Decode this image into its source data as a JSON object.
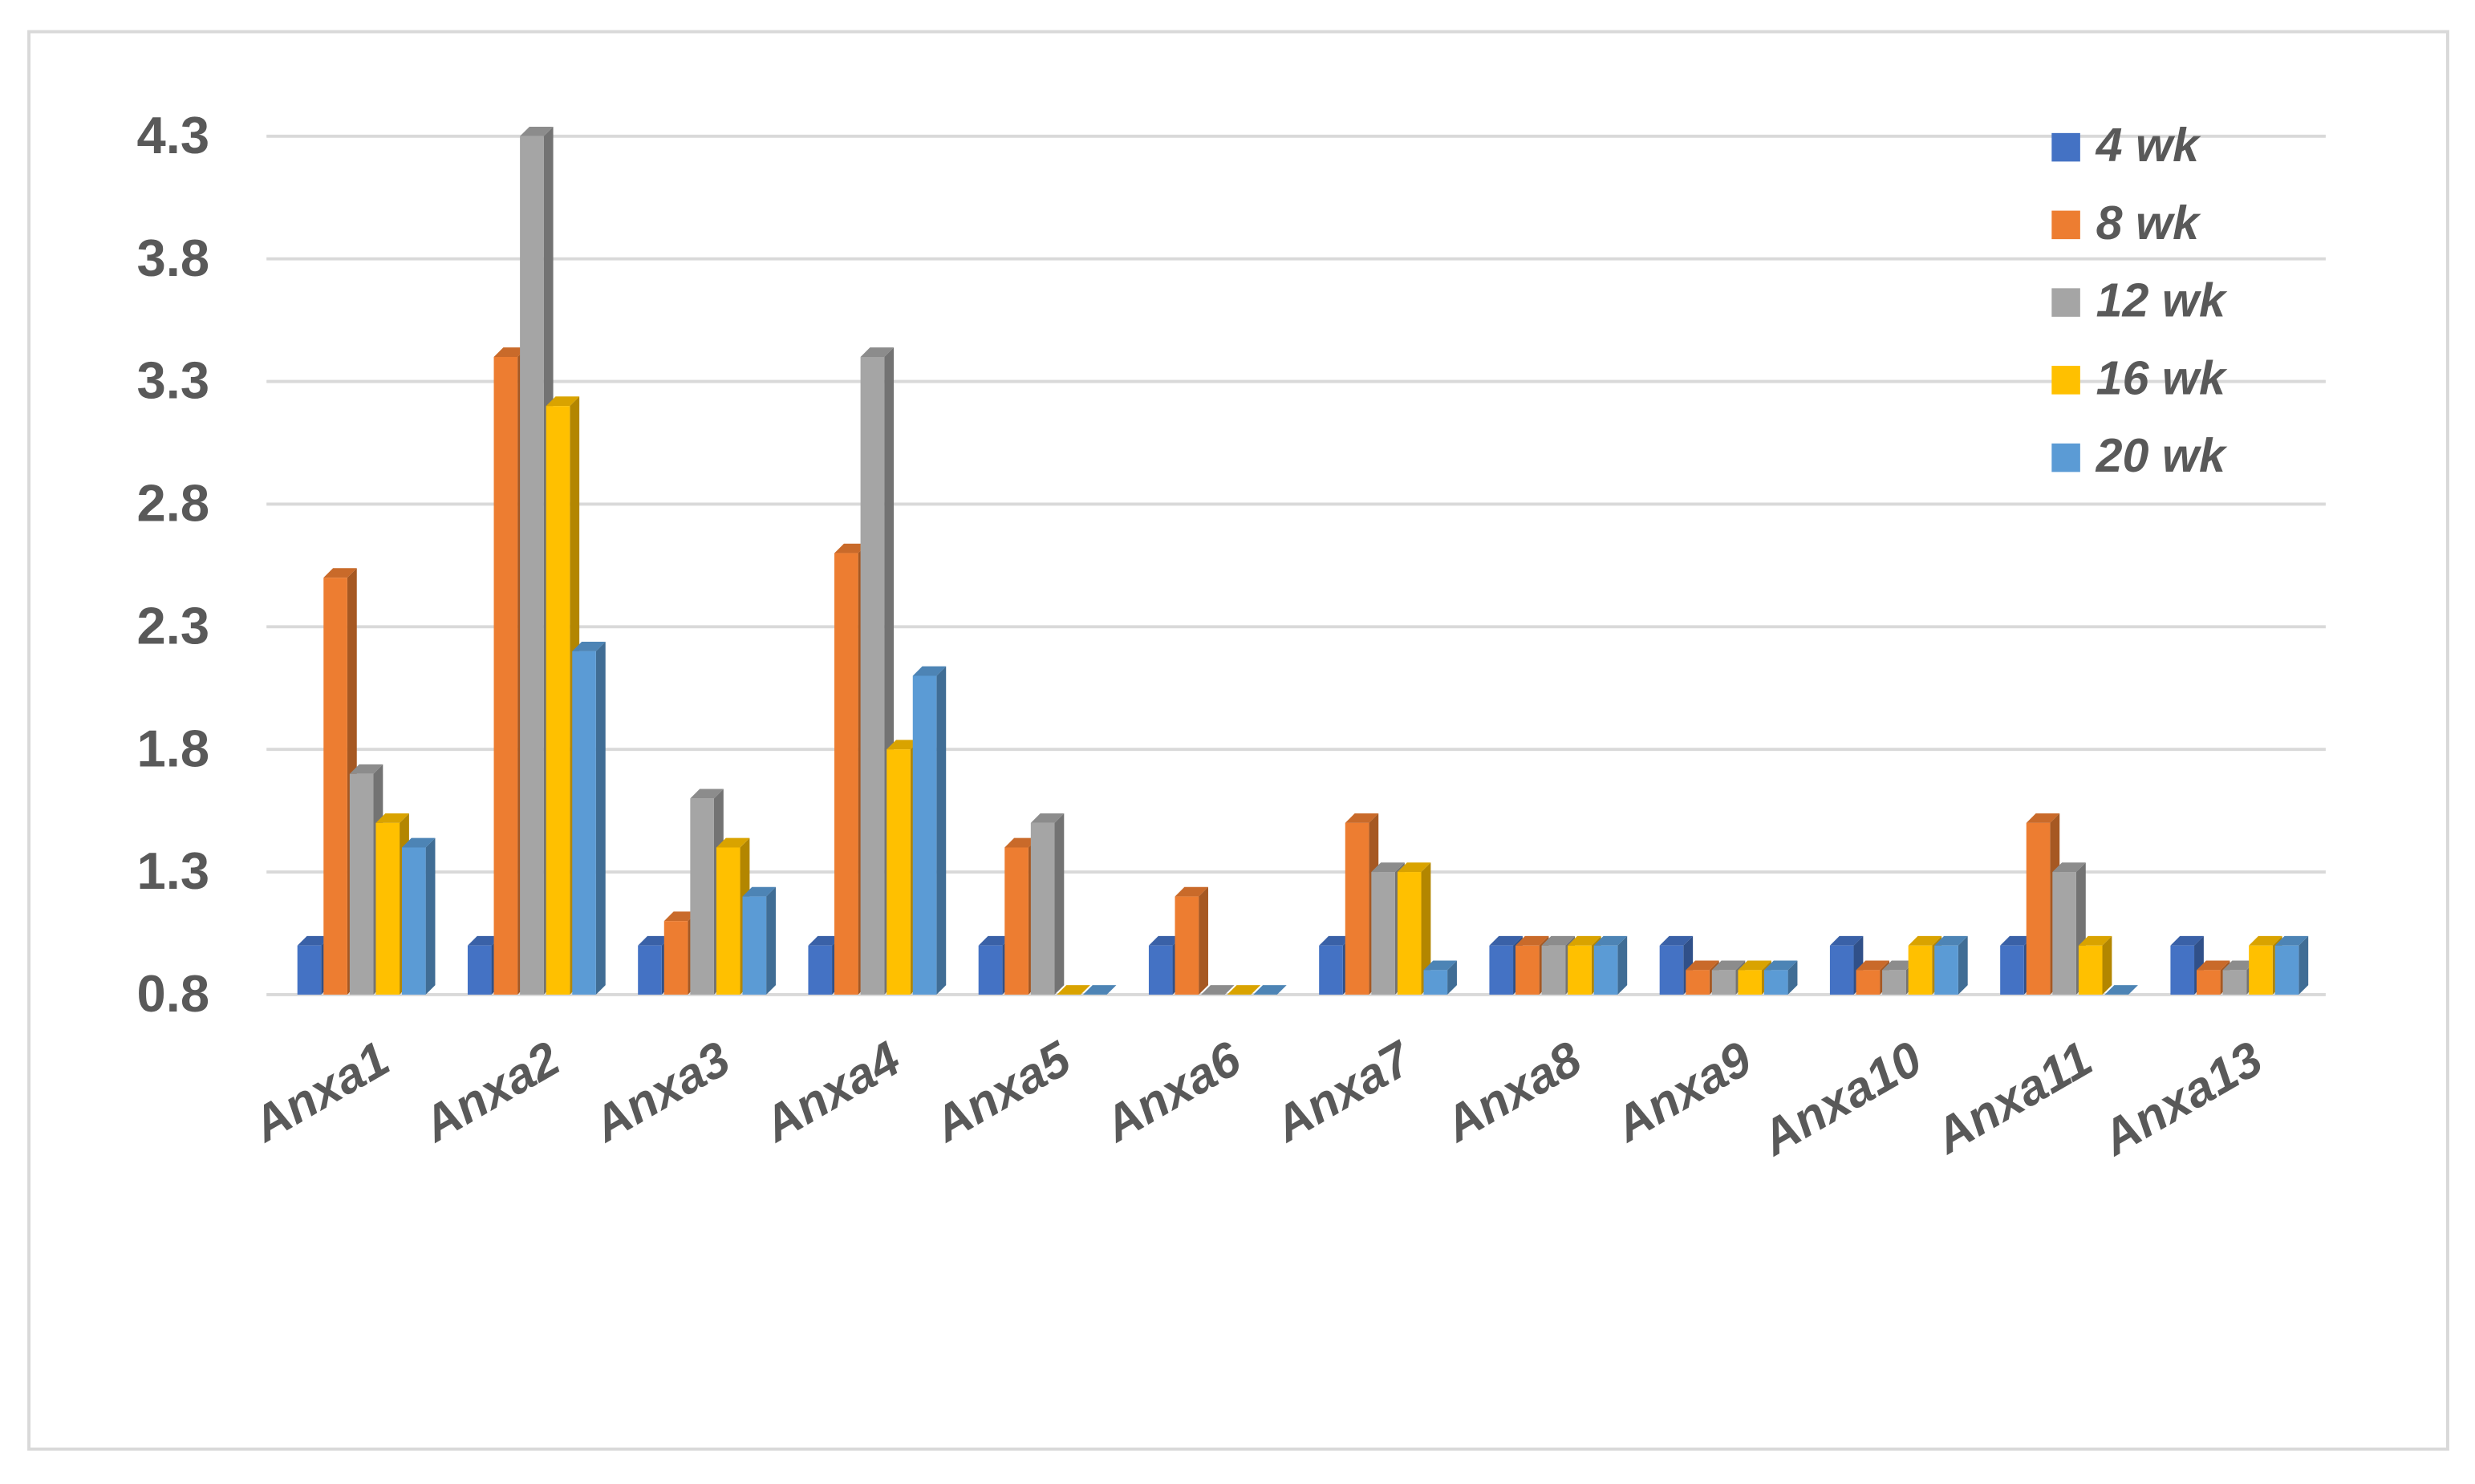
{
  "chart_data": {
    "type": "bar",
    "categories": [
      "Anxa1",
      "Anxa2",
      "Anxa3",
      "Anxa4",
      "Anxa5",
      "Anxa6",
      "Anxa7",
      "Anxa8",
      "Anxa9",
      "Anxa10",
      "Anxa11",
      "Anxa13"
    ],
    "series": [
      {
        "name": "4 wk",
        "color": "#4472c4",
        "values": [
          1.0,
          1.0,
          1.0,
          1.0,
          1.0,
          1.0,
          1.0,
          1.0,
          1.0,
          1.0,
          1.0,
          1.0
        ]
      },
      {
        "name": "8 wk",
        "color": "#ed7d31",
        "values": [
          2.5,
          3.4,
          1.1,
          2.6,
          1.4,
          1.2,
          1.5,
          1.0,
          0.9,
          0.9,
          1.5,
          0.9
        ]
      },
      {
        "name": "12 wk",
        "color": "#a5a5a5",
        "values": [
          1.7,
          4.3,
          1.6,
          3.4,
          1.5,
          0.8,
          1.3,
          1.0,
          0.9,
          0.9,
          1.3,
          0.9
        ]
      },
      {
        "name": "16 wk",
        "color": "#ffc000",
        "values": [
          1.5,
          3.2,
          1.4,
          1.8,
          0.8,
          0.8,
          1.3,
          1.0,
          0.9,
          1.0,
          1.0,
          1.0
        ]
      },
      {
        "name": "20 wk",
        "color": "#5b9bd5",
        "values": [
          1.4,
          2.2,
          1.2,
          2.1,
          0.8,
          0.8,
          0.9,
          1.0,
          0.9,
          1.0,
          0.8,
          1.0
        ]
      }
    ],
    "ylim": [
      0.8,
      4.3
    ],
    "yticks": [
      0.8,
      1.3,
      1.8,
      2.3,
      2.8,
      3.3,
      3.8,
      4.3
    ],
    "grid": true,
    "legend": "upper right"
  }
}
